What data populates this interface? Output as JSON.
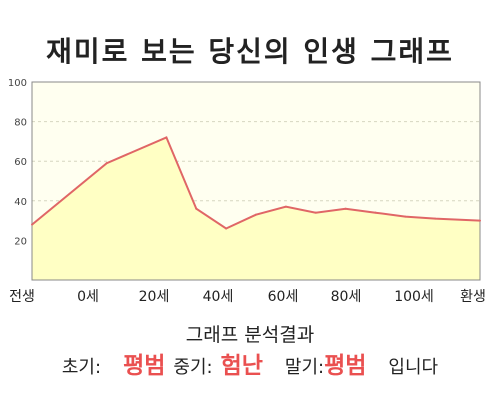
{
  "title": "재미로 보는 당신의 인생 그래프",
  "chart_data": {
    "type": "area",
    "x_labels": [
      "전생",
      "0세",
      "20세",
      "40세",
      "60세",
      "80세",
      "100세",
      "환생"
    ],
    "y_ticks": [
      "100",
      "80",
      "60",
      "40",
      "20"
    ],
    "ylim": [
      0,
      100
    ],
    "points": [
      {
        "x": -20,
        "y": 28
      },
      {
        "x": 0,
        "y": 59
      },
      {
        "x": 16,
        "y": 72
      },
      {
        "x": 24,
        "y": 36
      },
      {
        "x": 32,
        "y": 26
      },
      {
        "x": 40,
        "y": 33
      },
      {
        "x": 48,
        "y": 37
      },
      {
        "x": 56,
        "y": 34
      },
      {
        "x": 64,
        "y": 36
      },
      {
        "x": 72,
        "y": 34
      },
      {
        "x": 80,
        "y": 32
      },
      {
        "x": 88,
        "y": 31
      },
      {
        "x": 100,
        "y": 30
      }
    ],
    "x_tick_values": [
      -20,
      0,
      20,
      40,
      60,
      80,
      100,
      120
    ],
    "grid": true,
    "line_color": "#e06666",
    "fill_color": "#ffffc4"
  },
  "analysis": {
    "title": "그래프 분석결과",
    "early_label": "초기:",
    "early_value": "평범",
    "mid_label": "중기:",
    "mid_value": "험난",
    "late_label": "말기:",
    "late_value": "평범",
    "ending": "입니다",
    "value_color": "#ea5050"
  }
}
